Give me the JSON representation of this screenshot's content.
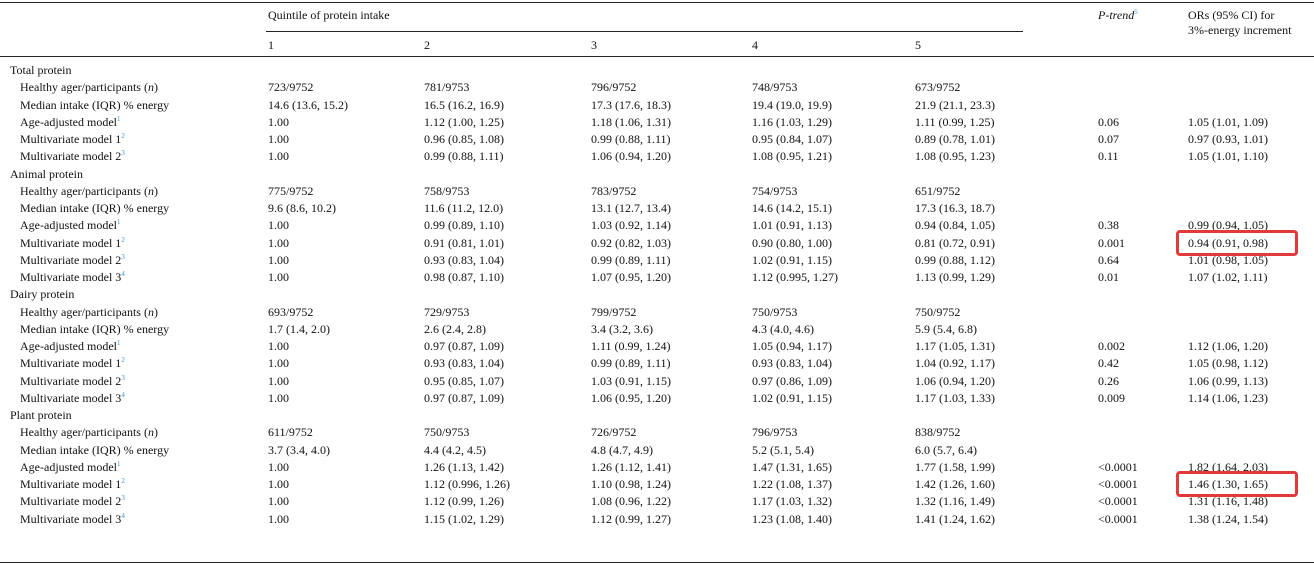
{
  "header": {
    "quintile_label": "Quintile of protein intake",
    "quintiles": [
      "1",
      "2",
      "3",
      "4",
      "5"
    ],
    "ptrend_label": "P-trend",
    "ptrend_sup": "5",
    "or_label_line1": "ORs (95% CI) for",
    "or_label_line2": "3%-energy increment"
  },
  "sections": [
    {
      "title": "Total protein",
      "rows": [
        {
          "label": "Healthy ager/participants",
          "italic_suffix": "n",
          "sup": "",
          "cells": [
            "723/9752",
            "781/9753",
            "796/9752",
            "748/9753",
            "673/9752"
          ],
          "ptrend": "",
          "or": ""
        },
        {
          "label": "Median intake (IQR) % energy",
          "italic_suffix": "",
          "sup": "",
          "cells": [
            "14.6 (13.6, 15.2)",
            "16.5 (16.2, 16.9)",
            "17.3 (17.6, 18.3)",
            "19.4 (19.0, 19.9)",
            "21.9 (21.1, 23.3)"
          ],
          "ptrend": "",
          "or": ""
        },
        {
          "label": "Age-adjusted model",
          "italic_suffix": "",
          "sup": "1",
          "cells": [
            "1.00",
            "1.12 (1.00, 1.25)",
            "1.18 (1.06, 1.31)",
            "1.16 (1.03, 1.29)",
            "1.11 (0.99, 1.25)"
          ],
          "ptrend": "0.06",
          "or": "1.05 (1.01, 1.09)"
        },
        {
          "label": "Multivariate model 1",
          "italic_suffix": "",
          "sup": "2",
          "cells": [
            "1.00",
            "0.96 (0.85, 1.08)",
            "0.99 (0.88, 1.11)",
            "0.95 (0.84, 1.07)",
            "0.89 (0.78, 1.01)"
          ],
          "ptrend": "0.07",
          "or": "0.97 (0.93, 1.01)"
        },
        {
          "label": "Multivariate model 2",
          "italic_suffix": "",
          "sup": "3",
          "cells": [
            "1.00",
            "0.99 (0.88, 1.11)",
            "1.06 (0.94, 1.20)",
            "1.08 (0.95, 1.21)",
            "1.08 (0.95, 1.23)"
          ],
          "ptrend": "0.11",
          "or": "1.05 (1.01, 1.10)"
        }
      ]
    },
    {
      "title": "Animal protein",
      "rows": [
        {
          "label": "Healthy ager/participants",
          "italic_suffix": "n",
          "sup": "",
          "cells": [
            "775/9752",
            "758/9753",
            "783/9752",
            "754/9753",
            "651/9752"
          ],
          "ptrend": "",
          "or": ""
        },
        {
          "label": "Median intake (IQR) % energy",
          "italic_suffix": "",
          "sup": "",
          "cells": [
            "9.6 (8.6, 10.2)",
            "11.6 (11.2, 12.0)",
            "13.1 (12.7, 13.4)",
            "14.6 (14.2, 15.1)",
            "17.3 (16.3, 18.7)"
          ],
          "ptrend": "",
          "or": ""
        },
        {
          "label": "Age-adjusted model",
          "italic_suffix": "",
          "sup": "1",
          "cells": [
            "1.00",
            "0.99 (0.89, 1.10)",
            "1.03 (0.92, 1.14)",
            "1.01 (0.91, 1.13)",
            "0.94 (0.84, 1.05)"
          ],
          "ptrend": "0.38",
          "or": "0.99 (0.94, 1.05)"
        },
        {
          "label": "Multivariate model 1",
          "italic_suffix": "",
          "sup": "2",
          "cells": [
            "1.00",
            "0.91 (0.81, 1.01)",
            "0.92 (0.82, 1.03)",
            "0.90 (0.80, 1.00)",
            "0.81 (0.72, 0.91)"
          ],
          "ptrend": "0.001",
          "or": "0.94 (0.91, 0.98)",
          "highlight": true
        },
        {
          "label": "Multivariate model 2",
          "italic_suffix": "",
          "sup": "3",
          "cells": [
            "1.00",
            "0.93 (0.83, 1.04)",
            "0.99 (0.89, 1.11)",
            "1.02 (0.91, 1.15)",
            "0.99 (0.88, 1.12)"
          ],
          "ptrend": "0.64",
          "or": "1.01 (0.98, 1.05)"
        },
        {
          "label": "Multivariate model 3",
          "italic_suffix": "",
          "sup": "4",
          "cells": [
            "1.00",
            "0.98 (0.87, 1.10)",
            "1.07 (0.95, 1.20)",
            "1.12 (0.995, 1.27)",
            "1.13 (0.99, 1.29)"
          ],
          "ptrend": "0.01",
          "or": "1.07 (1.02, 1.11)"
        }
      ]
    },
    {
      "title": "Dairy protein",
      "rows": [
        {
          "label": "Healthy ager/participants",
          "italic_suffix": "n",
          "sup": "",
          "cells": [
            "693/9752",
            "729/9753",
            "799/9752",
            "750/9753",
            "750/9752"
          ],
          "ptrend": "",
          "or": ""
        },
        {
          "label": "Median intake (IQR) % energy",
          "italic_suffix": "",
          "sup": "",
          "cells": [
            "1.7 (1.4, 2.0)",
            "2.6 (2.4, 2.8)",
            "3.4 (3.2, 3.6)",
            "4.3 (4.0, 4.6)",
            "5.9 (5.4, 6.8)"
          ],
          "ptrend": "",
          "or": ""
        },
        {
          "label": "Age-adjusted model",
          "italic_suffix": "",
          "sup": "1",
          "cells": [
            "1.00",
            "0.97 (0.87, 1.09)",
            "1.11 (0.99, 1.24)",
            "1.05 (0.94, 1.17)",
            "1.17 (1.05, 1.31)"
          ],
          "ptrend": "0.002",
          "or": "1.12 (1.06, 1.20)"
        },
        {
          "label": "Multivariate model 1",
          "italic_suffix": "",
          "sup": "2",
          "cells": [
            "1.00",
            "0.93 (0.83, 1.04)",
            "0.99 (0.89, 1.11)",
            "0.93 (0.83, 1.04)",
            "1.04 (0.92, 1.17)"
          ],
          "ptrend": "0.42",
          "or": "1.05 (0.98, 1.12)"
        },
        {
          "label": "Multivariate model 2",
          "italic_suffix": "",
          "sup": "3",
          "cells": [
            "1.00",
            "0.95 (0.85, 1.07)",
            "1.03 (0.91, 1.15)",
            "0.97 (0.86, 1.09)",
            "1.06 (0.94, 1.20)"
          ],
          "ptrend": "0.26",
          "or": "1.06 (0.99, 1.13)"
        },
        {
          "label": "Multivariate model 3",
          "italic_suffix": "",
          "sup": "4",
          "cells": [
            "1.00",
            "0.97 (0.87, 1.09)",
            "1.06 (0.95, 1.20)",
            "1.02 (0.91, 1.15)",
            "1.17 (1.03, 1.33)"
          ],
          "ptrend": "0.009",
          "or": "1.14 (1.06, 1.23)"
        }
      ]
    },
    {
      "title": "Plant protein",
      "rows": [
        {
          "label": "Healthy ager/participants",
          "italic_suffix": "n",
          "sup": "",
          "cells": [
            "611/9752",
            "750/9753",
            "726/9752",
            "796/9753",
            "838/9752"
          ],
          "ptrend": "",
          "or": ""
        },
        {
          "label": "Median intake (IQR) % energy",
          "italic_suffix": "",
          "sup": "",
          "cells": [
            "3.7 (3.4, 4.0)",
            "4.4 (4.2, 4.5)",
            "4.8 (4.7, 4.9)",
            "5.2 (5.1, 5.4)",
            "6.0 (5.7, 6.4)"
          ],
          "ptrend": "",
          "or": ""
        },
        {
          "label": "Age-adjusted model",
          "italic_suffix": "",
          "sup": "1",
          "cells": [
            "1.00",
            "1.26 (1.13, 1.42)",
            "1.26 (1.12, 1.41)",
            "1.47 (1.31, 1.65)",
            "1.77 (1.58, 1.99)"
          ],
          "ptrend": "<0.0001",
          "or": "1.82 (1.64, 2.03)"
        },
        {
          "label": "Multivariate model 1",
          "italic_suffix": "",
          "sup": "2",
          "cells": [
            "1.00",
            "1.12 (0.996, 1.26)",
            "1.10 (0.98, 1.24)",
            "1.22 (1.08, 1.37)",
            "1.42 (1.26, 1.60)"
          ],
          "ptrend": "<0.0001",
          "or": "1.46 (1.30, 1.65)",
          "highlight": true
        },
        {
          "label": "Multivariate model 2",
          "italic_suffix": "",
          "sup": "3",
          "cells": [
            "1.00",
            "1.12 (0.99, 1.26)",
            "1.08 (0.96, 1.22)",
            "1.17 (1.03, 1.32)",
            "1.32 (1.16, 1.49)"
          ],
          "ptrend": "<0.0001",
          "or": "1.31 (1.16, 1.48)"
        },
        {
          "label": "Multivariate model 3",
          "italic_suffix": "",
          "sup": "4",
          "cells": [
            "1.00",
            "1.15 (1.02, 1.29)",
            "1.12 (0.99, 1.27)",
            "1.23 (1.08, 1.40)",
            "1.41 (1.24, 1.62)"
          ],
          "ptrend": "<0.0001",
          "or": "1.38 (1.24, 1.54)"
        }
      ]
    }
  ],
  "colors": {
    "highlight_border": "#e23a3a",
    "footnote_link": "#3b8fd4",
    "rule": "#222222"
  }
}
